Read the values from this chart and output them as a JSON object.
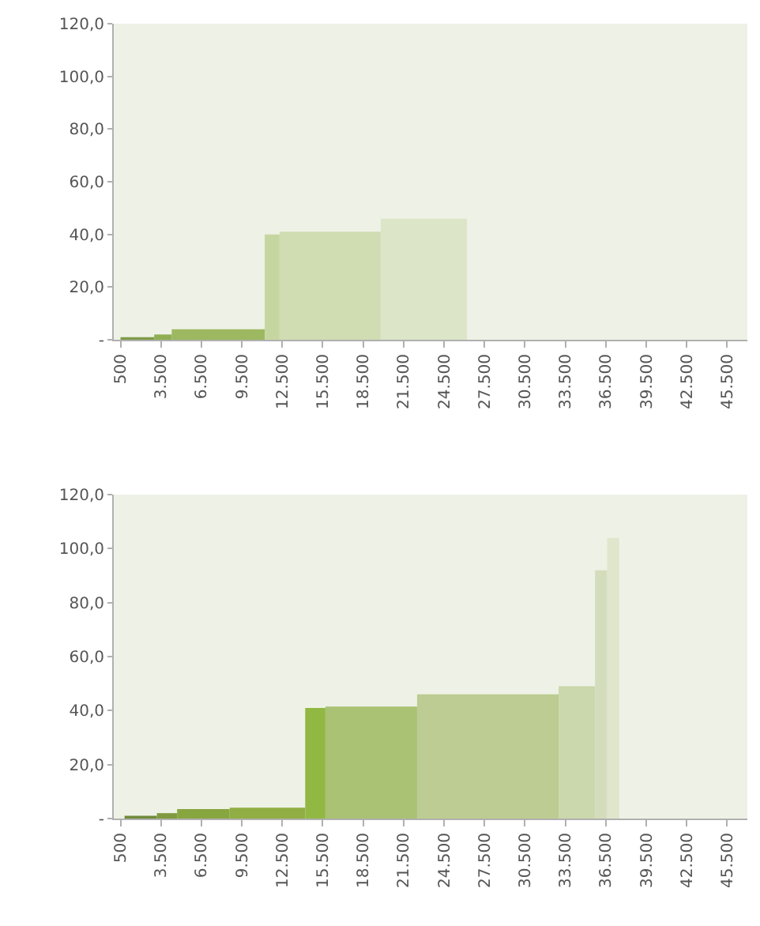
{
  "chart_data": [
    {
      "type": "area",
      "xlim": [
        0,
        47000
      ],
      "ylim": [
        0,
        120
      ],
      "xticks": [
        {
          "value": 500,
          "label": "500"
        },
        {
          "value": 3500,
          "label": "3.500"
        },
        {
          "value": 6500,
          "label": "6.500"
        },
        {
          "value": 9500,
          "label": "9.500"
        },
        {
          "value": 12500,
          "label": "12.500"
        },
        {
          "value": 15500,
          "label": "15.500"
        },
        {
          "value": 18500,
          "label": "18.500"
        },
        {
          "value": 21500,
          "label": "21.500"
        },
        {
          "value": 24500,
          "label": "24.500"
        },
        {
          "value": 27500,
          "label": "27.500"
        },
        {
          "value": 30500,
          "label": "30.500"
        },
        {
          "value": 33500,
          "label": "33.500"
        },
        {
          "value": 36500,
          "label": "36.500"
        },
        {
          "value": 39500,
          "label": "39.500"
        },
        {
          "value": 42500,
          "label": "42.500"
        },
        {
          "value": 45500,
          "label": "45.500"
        }
      ],
      "yticks": [
        {
          "value": 0,
          "label": "-"
        },
        {
          "value": 20,
          "label": "20,0"
        },
        {
          "value": 40,
          "label": "40,0"
        },
        {
          "value": 60,
          "label": "60,0"
        },
        {
          "value": 80,
          "label": "80,0"
        },
        {
          "value": 100,
          "label": "100,0"
        },
        {
          "value": 120,
          "label": "120,0"
        }
      ],
      "series": [
        {
          "color": "#7f9a4a",
          "x": [
            500,
            3000
          ],
          "values": [
            1,
            1
          ]
        },
        {
          "color": "#8fae52",
          "x": [
            3000,
            4300
          ],
          "values": [
            2,
            2
          ]
        },
        {
          "color": "#9cb860",
          "x": [
            4300,
            11200
          ],
          "values": [
            4,
            4
          ]
        },
        {
          "color": "#c6d6a0",
          "x": [
            11200,
            12300
          ],
          "values": [
            40,
            40
          ]
        },
        {
          "color": "#d0ddb2",
          "x": [
            12300,
            19800
          ],
          "values": [
            41,
            41
          ]
        },
        {
          "color": "#dce5c8",
          "x": [
            19800,
            26200
          ],
          "values": [
            46,
            46
          ]
        }
      ]
    },
    {
      "type": "area",
      "xlim": [
        0,
        47000
      ],
      "ylim": [
        0,
        120
      ],
      "xticks": [
        {
          "value": 500,
          "label": "500"
        },
        {
          "value": 3500,
          "label": "3.500"
        },
        {
          "value": 6500,
          "label": "6.500"
        },
        {
          "value": 9500,
          "label": "9.500"
        },
        {
          "value": 12500,
          "label": "12.500"
        },
        {
          "value": 15500,
          "label": "15.500"
        },
        {
          "value": 18500,
          "label": "18.500"
        },
        {
          "value": 21500,
          "label": "21.500"
        },
        {
          "value": 24500,
          "label": "24.500"
        },
        {
          "value": 27500,
          "label": "27.500"
        },
        {
          "value": 30500,
          "label": "30.500"
        },
        {
          "value": 33500,
          "label": "33.500"
        },
        {
          "value": 36500,
          "label": "36.500"
        },
        {
          "value": 39500,
          "label": "39.500"
        },
        {
          "value": 42500,
          "label": "42.500"
        },
        {
          "value": 45500,
          "label": "45.500"
        }
      ],
      "yticks": [
        {
          "value": 0,
          "label": "-"
        },
        {
          "value": 20,
          "label": "20,0"
        },
        {
          "value": 40,
          "label": "40,0"
        },
        {
          "value": 60,
          "label": "60,0"
        },
        {
          "value": 80,
          "label": "80,0"
        },
        {
          "value": 100,
          "label": "100,0"
        },
        {
          "value": 120,
          "label": "120,0"
        }
      ],
      "series": [
        {
          "color": "#6f8a3a",
          "x": [
            800,
            3200
          ],
          "values": [
            1,
            1
          ]
        },
        {
          "color": "#7f9a40",
          "x": [
            3200,
            4700
          ],
          "values": [
            2,
            2
          ]
        },
        {
          "color": "#88a640",
          "x": [
            4700,
            8600
          ],
          "values": [
            3.5,
            3.5
          ]
        },
        {
          "color": "#90ae44",
          "x": [
            8600,
            14200
          ],
          "values": [
            4,
            4
          ]
        },
        {
          "color": "#92b844",
          "x": [
            14200,
            15700
          ],
          "values": [
            41,
            41
          ]
        },
        {
          "color": "#a9c274",
          "x": [
            15700,
            22500
          ],
          "values": [
            41.5,
            41.5
          ]
        },
        {
          "color": "#bccc92",
          "x": [
            22500,
            33000
          ],
          "values": [
            46,
            46
          ]
        },
        {
          "color": "#cbd7ac",
          "x": [
            33000,
            35700
          ],
          "values": [
            49,
            49
          ]
        },
        {
          "color": "#d3ddbc",
          "x": [
            35700,
            36600
          ],
          "values": [
            92,
            92
          ]
        },
        {
          "color": "#dfe6cc",
          "x": [
            36600,
            37500
          ],
          "values": [
            104,
            104
          ]
        }
      ]
    }
  ]
}
